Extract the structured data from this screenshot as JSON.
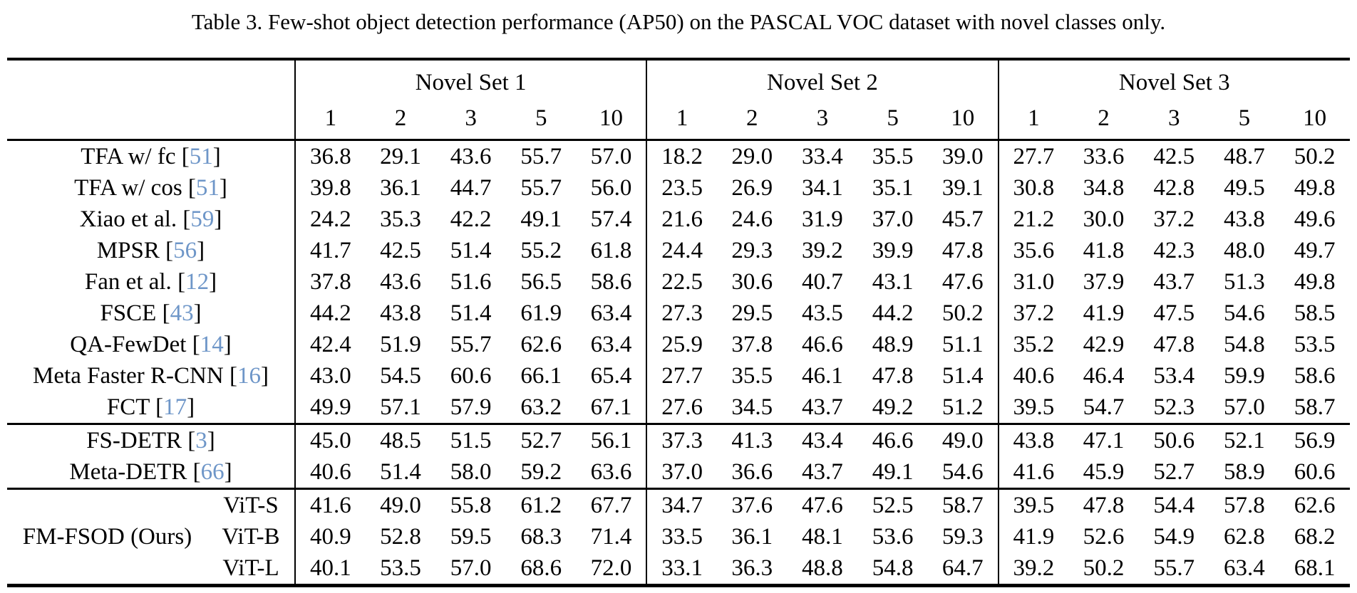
{
  "title": "Table 3. Few-shot object detection performance (AP50) on the PASCAL VOC dataset with novel classes only.",
  "colors": {
    "citation": "#6E96C8",
    "rule": "#000000",
    "text": "#000000",
    "background": "#FFFFFF"
  },
  "header": {
    "sets": [
      {
        "label": "Novel Set 1"
      },
      {
        "label": "Novel Set 2"
      },
      {
        "label": "Novel Set 3"
      }
    ],
    "shots": [
      "1",
      "2",
      "3",
      "5",
      "10"
    ]
  },
  "sections": [
    {
      "name": "baselines",
      "rows": [
        {
          "method": "TFA w/ fc",
          "cite": "51",
          "set1": [
            "36.8",
            "29.1",
            "43.6",
            "55.7",
            "57.0"
          ],
          "set2": [
            "18.2",
            "29.0",
            "33.4",
            "35.5",
            "39.0"
          ],
          "set3": [
            "27.7",
            "33.6",
            "42.5",
            "48.7",
            "50.2"
          ]
        },
        {
          "method": "TFA w/ cos",
          "cite": "51",
          "set1": [
            "39.8",
            "36.1",
            "44.7",
            "55.7",
            "56.0"
          ],
          "set2": [
            "23.5",
            "26.9",
            "34.1",
            "35.1",
            "39.1"
          ],
          "set3": [
            "30.8",
            "34.8",
            "42.8",
            "49.5",
            "49.8"
          ]
        },
        {
          "method": "Xiao et al.",
          "cite": "59",
          "set1": [
            "24.2",
            "35.3",
            "42.2",
            "49.1",
            "57.4"
          ],
          "set2": [
            "21.6",
            "24.6",
            "31.9",
            "37.0",
            "45.7"
          ],
          "set3": [
            "21.2",
            "30.0",
            "37.2",
            "43.8",
            "49.6"
          ]
        },
        {
          "method": "MPSR",
          "cite": "56",
          "set1": [
            "41.7",
            "42.5",
            "51.4",
            "55.2",
            "61.8"
          ],
          "set2": [
            "24.4",
            "29.3",
            "39.2",
            "39.9",
            "47.8"
          ],
          "set3": [
            "35.6",
            "41.8",
            "42.3",
            "48.0",
            "49.7"
          ]
        },
        {
          "method": "Fan et al.",
          "cite": "12",
          "set1": [
            "37.8",
            "43.6",
            "51.6",
            "56.5",
            "58.6"
          ],
          "set2": [
            "22.5",
            "30.6",
            "40.7",
            "43.1",
            "47.6"
          ],
          "set3": [
            "31.0",
            "37.9",
            "43.7",
            "51.3",
            "49.8"
          ]
        },
        {
          "method": "FSCE",
          "cite": "43",
          "set1": [
            "44.2",
            "43.8",
            "51.4",
            "61.9",
            "63.4"
          ],
          "set2": [
            "27.3",
            "29.5",
            "43.5",
            "44.2",
            "50.2"
          ],
          "set3": [
            "37.2",
            "41.9",
            "47.5",
            "54.6",
            "58.5"
          ]
        },
        {
          "method": "QA-FewDet",
          "cite": "14",
          "set1": [
            "42.4",
            "51.9",
            "55.7",
            "62.6",
            "63.4"
          ],
          "set2": [
            "25.9",
            "37.8",
            "46.6",
            "48.9",
            "51.1"
          ],
          "set3": [
            "35.2",
            "42.9",
            "47.8",
            "54.8",
            "53.5"
          ]
        },
        {
          "method": "Meta Faster R-CNN",
          "cite": "16",
          "set1": [
            "43.0",
            "54.5",
            "60.6",
            "66.1",
            "65.4"
          ],
          "set2": [
            "27.7",
            "35.5",
            "46.1",
            "47.8",
            "51.4"
          ],
          "set3": [
            "40.6",
            "46.4",
            "53.4",
            "59.9",
            "58.6"
          ]
        },
        {
          "method": "FCT",
          "cite": "17",
          "set1": [
            "49.9",
            "57.1",
            "57.9",
            "63.2",
            "67.1"
          ],
          "set2": [
            "27.6",
            "34.5",
            "43.7",
            "49.2",
            "51.2"
          ],
          "set3": [
            "39.5",
            "54.7",
            "52.3",
            "57.0",
            "58.7"
          ]
        }
      ]
    },
    {
      "name": "detr-based",
      "rows": [
        {
          "method": "FS-DETR",
          "cite": "3",
          "set1": [
            "45.0",
            "48.5",
            "51.5",
            "52.7",
            "56.1"
          ],
          "set2": [
            "37.3",
            "41.3",
            "43.4",
            "46.6",
            "49.0"
          ],
          "set3": [
            "43.8",
            "47.1",
            "50.6",
            "52.1",
            "56.9"
          ]
        },
        {
          "method": "Meta-DETR",
          "cite": "66",
          "set1": [
            "40.6",
            "51.4",
            "58.0",
            "59.2",
            "63.6"
          ],
          "set2": [
            "37.0",
            "36.6",
            "43.7",
            "49.1",
            "54.6"
          ],
          "set3": [
            "41.6",
            "45.9",
            "52.7",
            "58.9",
            "60.6"
          ]
        }
      ]
    },
    {
      "name": "ours",
      "rows": [
        {
          "group": "",
          "variant": "ViT-S",
          "set1": [
            "41.6",
            "49.0",
            "55.8",
            "61.2",
            "67.7"
          ],
          "set2": [
            "34.7",
            "37.6",
            "47.6",
            "52.5",
            "58.7"
          ],
          "set3": [
            "39.5",
            "47.8",
            "54.4",
            "57.8",
            "62.6"
          ]
        },
        {
          "group": "FM-FSOD (Ours)",
          "variant": "ViT-B",
          "set1": [
            "40.9",
            "52.8",
            "59.5",
            "68.3",
            "71.4"
          ],
          "set2": [
            "33.5",
            "36.1",
            "48.1",
            "53.6",
            "59.3"
          ],
          "set3": [
            "41.9",
            "52.6",
            "54.9",
            "62.8",
            "68.2"
          ]
        },
        {
          "group": "",
          "variant": "ViT-L",
          "set1": [
            "40.1",
            "53.5",
            "57.0",
            "68.6",
            "72.0"
          ],
          "set2": [
            "33.1",
            "36.3",
            "48.8",
            "54.8",
            "64.7"
          ],
          "set3": [
            "39.2",
            "50.2",
            "55.7",
            "63.4",
            "68.1"
          ]
        }
      ]
    }
  ]
}
